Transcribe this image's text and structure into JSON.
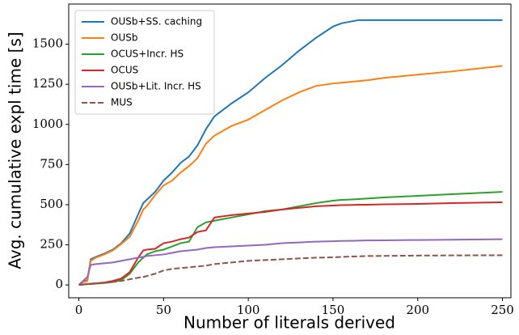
{
  "chart_data": {
    "type": "line",
    "xlabel": "Number of literals derived",
    "ylabel": "Avg. cumulative expl time [s]",
    "x": [
      0,
      2,
      5,
      7,
      10,
      15,
      20,
      25,
      30,
      35,
      38,
      40,
      45,
      50,
      55,
      60,
      65,
      70,
      75,
      80,
      90,
      100,
      110,
      120,
      130,
      140,
      150,
      155,
      160,
      165,
      170,
      180,
      200,
      220,
      250
    ],
    "series": [
      {
        "name": "OUSb+SS. caching",
        "color": "#1f77b4",
        "linestyle": "solid",
        "values": [
          0,
          20,
          30,
          160,
          175,
          195,
          220,
          260,
          320,
          440,
          510,
          530,
          580,
          650,
          700,
          760,
          800,
          870,
          970,
          1050,
          1130,
          1200,
          1290,
          1370,
          1460,
          1540,
          1610,
          1630,
          1640,
          1650,
          1650,
          1650,
          1650,
          1650,
          1650
        ]
      },
      {
        "name": "OUSb",
        "color": "#ff7f0e",
        "linestyle": "solid",
        "values": [
          0,
          15,
          25,
          150,
          170,
          190,
          215,
          255,
          300,
          400,
          470,
          490,
          560,
          620,
          650,
          700,
          740,
          790,
          880,
          930,
          990,
          1030,
          1090,
          1150,
          1200,
          1240,
          1255,
          1260,
          1265,
          1270,
          1275,
          1290,
          1310,
          1330,
          1365
        ]
      },
      {
        "name": "OCUS+Incr. HS",
        "color": "#2ca02c",
        "linestyle": "solid",
        "values": [
          0,
          2,
          5,
          5,
          8,
          12,
          18,
          30,
          70,
          140,
          170,
          190,
          210,
          220,
          240,
          260,
          270,
          360,
          390,
          400,
          420,
          440,
          460,
          470,
          490,
          510,
          525,
          530,
          532,
          535,
          538,
          545,
          555,
          565,
          580
        ]
      },
      {
        "name": "OCUS",
        "color": "#d62728",
        "linestyle": "solid",
        "values": [
          0,
          3,
          5,
          8,
          10,
          15,
          25,
          40,
          80,
          170,
          215,
          220,
          225,
          260,
          270,
          285,
          295,
          330,
          340,
          420,
          435,
          445,
          455,
          470,
          480,
          490,
          495,
          497,
          498,
          500,
          500,
          502,
          505,
          510,
          515
        ]
      },
      {
        "name": "OUSb+Lit. Incr. HS",
        "color": "#9467bd",
        "linestyle": "solid",
        "values": [
          0,
          20,
          50,
          125,
          130,
          135,
          140,
          150,
          160,
          170,
          175,
          180,
          185,
          190,
          200,
          210,
          215,
          220,
          230,
          235,
          240,
          245,
          250,
          260,
          265,
          270,
          272,
          274,
          275,
          276,
          277,
          278,
          280,
          282,
          285
        ]
      },
      {
        "name": "MUS",
        "color": "#8c564b",
        "linestyle": "dashed",
        "values": [
          0,
          2,
          5,
          7,
          10,
          13,
          18,
          25,
          35,
          45,
          50,
          55,
          70,
          90,
          100,
          105,
          110,
          115,
          120,
          130,
          140,
          150,
          155,
          160,
          165,
          170,
          172,
          175,
          177,
          178,
          180,
          181,
          183,
          184,
          185
        ]
      }
    ],
    "xlim": [
      -6,
      255
    ],
    "xticks": [
      0,
      50,
      100,
      150,
      200,
      250
    ],
    "ylim": [
      -80,
      1750
    ],
    "yticks": [
      0,
      250,
      500,
      750,
      1000,
      1250,
      1500
    ],
    "legend": "upper left",
    "grid": false
  }
}
